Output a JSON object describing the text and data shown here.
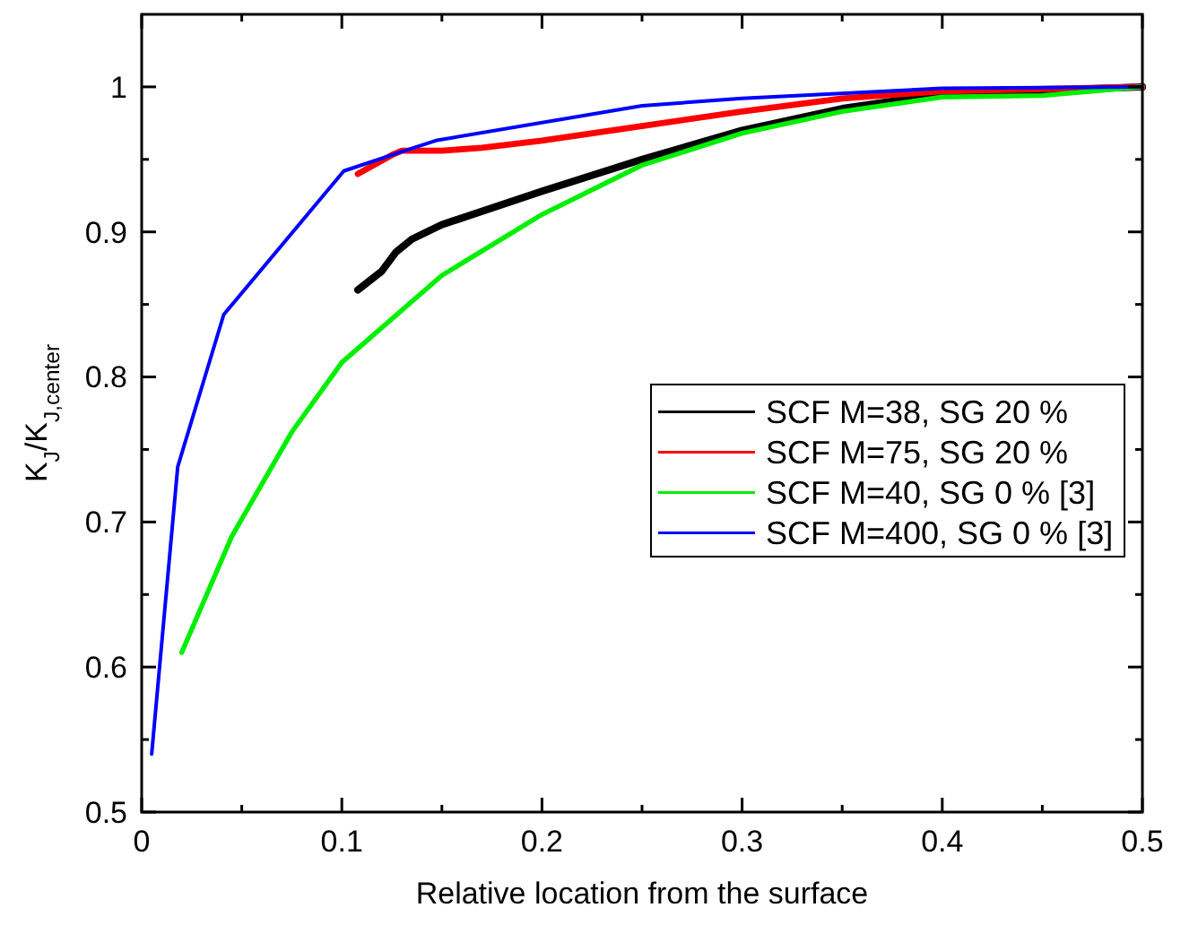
{
  "chart_data": {
    "type": "line",
    "xlabel": "Relative location from the surface",
    "ylabel": "K$_{J}$/K$_{J,center}$",
    "xlim": [
      0,
      0.5
    ],
    "ylim": [
      0.5,
      1.05
    ],
    "xticks": [
      0,
      {
        "value": 0.05,
        "label": null
      },
      0.1,
      {
        "value": 0.15,
        "label": null
      },
      0.2,
      {
        "value": 0.25,
        "label": null
      },
      0.3,
      {
        "value": 0.35,
        "label": null
      },
      0.4,
      {
        "value": 0.45,
        "label": null
      },
      0.5
    ],
    "yticks": [
      0.5,
      {
        "value": 0.55,
        "label": null
      },
      0.6,
      {
        "value": 0.65,
        "label": null
      },
      0.7,
      {
        "value": 0.75,
        "label": null
      },
      0.8,
      {
        "value": 0.85,
        "label": null
      },
      0.9,
      {
        "value": 0.95,
        "label": null
      },
      1
    ],
    "grid": false,
    "legend": "center right",
    "marker": "none",
    "line_style": "solid",
    "series": [
      {
        "name": "SCF M=38, SG 20 %",
        "color": "#000000",
        "x": [
          0.108,
          0.12,
          0.127,
          0.135,
          0.15,
          0.2,
          0.25,
          0.3,
          0.35,
          0.4,
          0.5
        ],
        "values": [
          0.86,
          0.873,
          0.886,
          0.895,
          0.905,
          0.928,
          0.95,
          0.97,
          0.985,
          0.995,
          1.0
        ]
      },
      {
        "name": "SCF M=75, SG 20 %",
        "color": "#ff0000",
        "x": [
          0.108,
          0.125,
          0.13,
          0.15,
          0.17,
          0.2,
          0.25,
          0.3,
          0.35,
          0.4,
          0.5
        ],
        "values": [
          0.94,
          0.953,
          0.956,
          0.956,
          0.958,
          0.963,
          0.973,
          0.983,
          0.992,
          0.997,
          1.0
        ]
      },
      {
        "name": "SCF M=40, SG 0 % [3]",
        "color": "#00ee00",
        "x": [
          0.02,
          0.045,
          0.075,
          0.1,
          0.15,
          0.2,
          0.25,
          0.3,
          0.35,
          0.4,
          0.45,
          0.5
        ],
        "values": [
          0.61,
          0.69,
          0.762,
          0.81,
          0.87,
          0.912,
          0.946,
          0.968,
          0.983,
          0.993,
          0.994,
          1.0
        ]
      },
      {
        "name": "SCF M=400, SG 0 % [3]",
        "color": "#0000ff",
        "x": [
          0.005,
          0.018,
          0.041,
          0.101,
          0.127,
          0.147,
          0.25,
          0.3,
          0.4,
          0.5
        ],
        "values": [
          0.54,
          0.738,
          0.843,
          0.942,
          0.954,
          0.963,
          0.987,
          0.992,
          0.999,
          1.0
        ]
      }
    ]
  }
}
